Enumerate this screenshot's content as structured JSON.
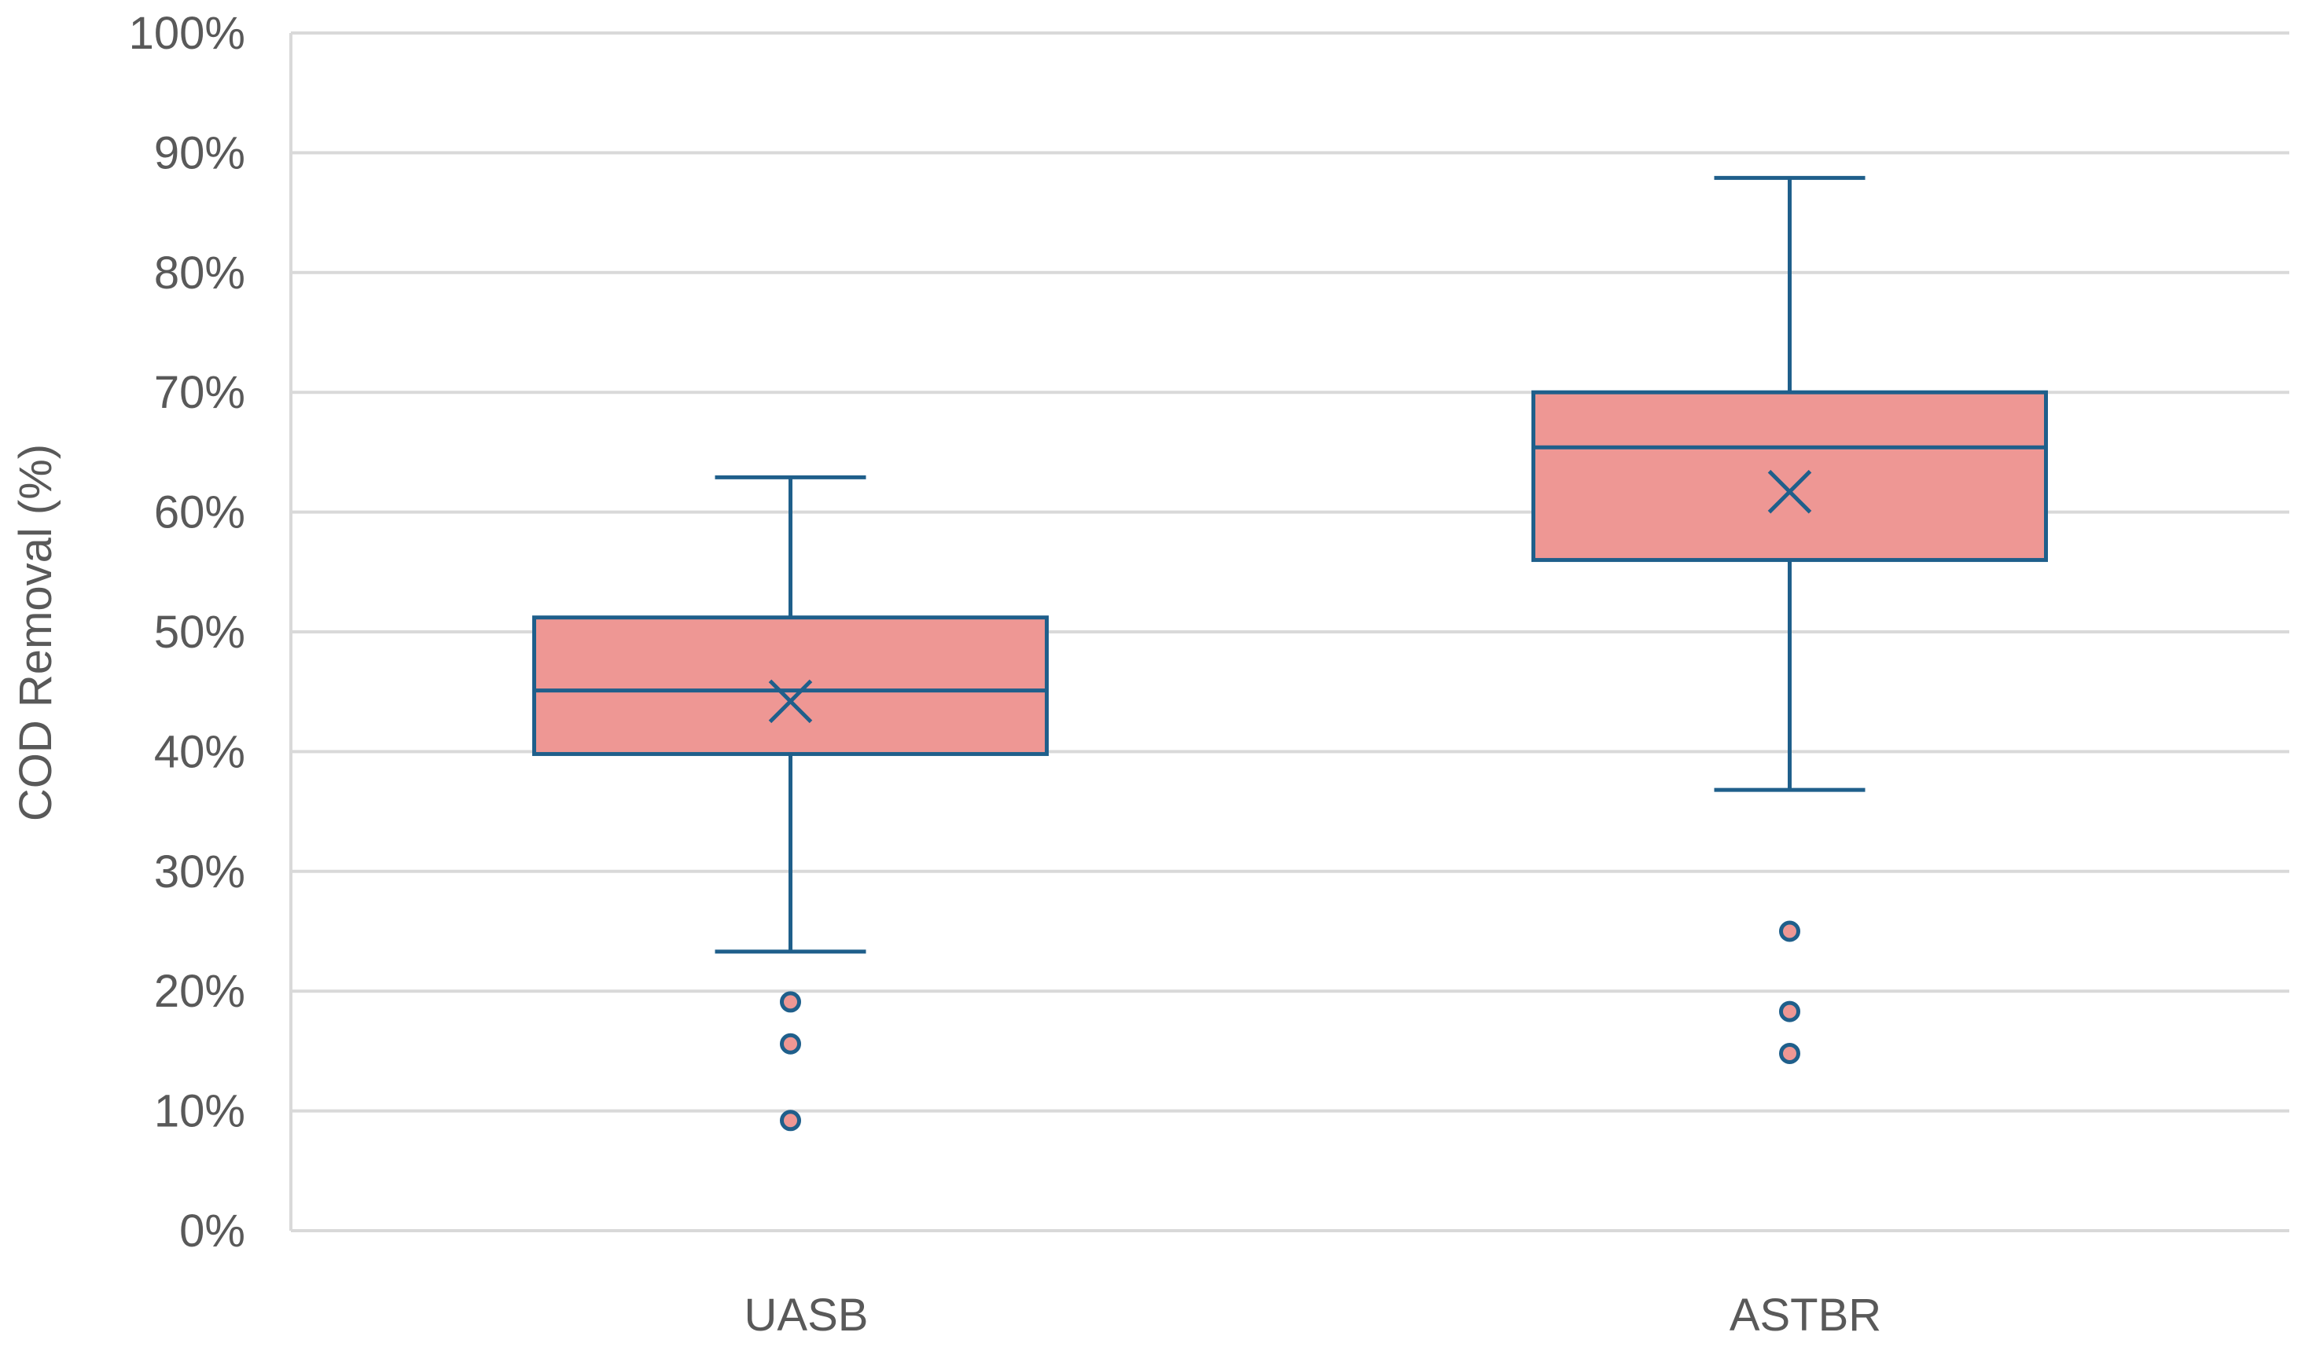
{
  "chart_data": {
    "type": "box",
    "ylabel": "COD Removal (%)",
    "xlabel": "",
    "ylim": [
      0,
      100
    ],
    "y_ticks": [
      "0%",
      "10%",
      "20%",
      "30%",
      "40%",
      "50%",
      "60%",
      "70%",
      "80%",
      "90%",
      "100%"
    ],
    "grid": true,
    "categories": [
      "UASB",
      "ASTBR"
    ],
    "boxes": [
      {
        "category": "UASB",
        "min": 23.3,
        "q1": 39.8,
        "median": 45.1,
        "q3": 51.2,
        "max": 62.9,
        "mean": 44.2,
        "outliers": [
          19.1,
          15.6,
          9.2
        ]
      },
      {
        "category": "ASTBR",
        "min": 36.8,
        "q1": 56.0,
        "median": 65.4,
        "q3": 70.0,
        "max": 87.9,
        "mean": 61.7,
        "outliers": [
          25.0,
          18.3,
          14.8
        ]
      }
    ],
    "colors": {
      "box_fill": "#ee9794",
      "box_stroke": "#1f5f8b",
      "grid": "#d9d9d9",
      "text": "#595959"
    }
  }
}
